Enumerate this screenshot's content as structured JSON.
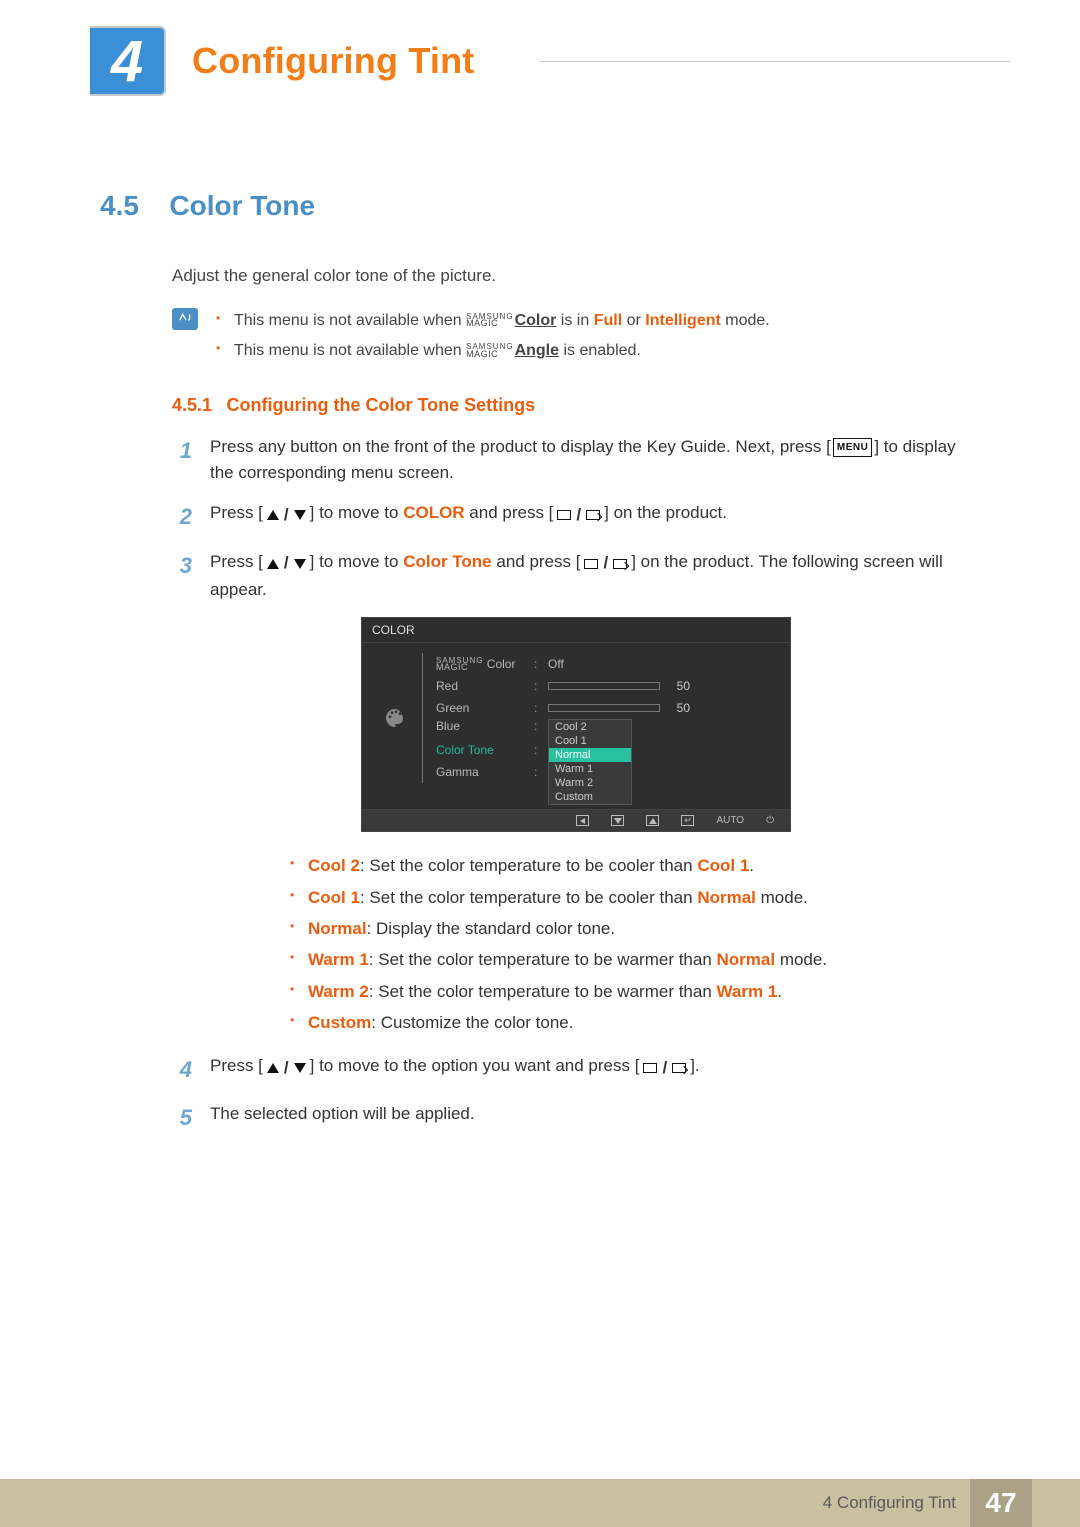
{
  "header": {
    "chapter_number": "4",
    "chapter_title": "Configuring Tint"
  },
  "section": {
    "number": "4.5",
    "title": "Color Tone",
    "description": "Adjust the general color tone of the picture."
  },
  "notes": {
    "line1_prefix": "This menu is not available when ",
    "line1_magic_top": "SAMSUNG",
    "line1_magic_bottom": "MAGIC",
    "line1_magic_word": "Color",
    "line1_middle": " is in ",
    "line1_full": "Full",
    "line1_or": " or ",
    "line1_intelligent": "Intelligent",
    "line1_suffix": " mode.",
    "line2_prefix": "This menu is not available when ",
    "line2_magic_word": "Angle",
    "line2_suffix": " is enabled."
  },
  "subsection": {
    "number": "4.5.1",
    "title": "Configuring the Color Tone Settings"
  },
  "steps": {
    "s1": {
      "num": "1",
      "t1": "Press any button on the front of the product to display the Key Guide. Next, press [",
      "menu": "MENU",
      "t2": "] to display the corresponding menu screen."
    },
    "s2": {
      "num": "2",
      "t1": "Press [",
      "t2": "] to move to ",
      "color": "COLOR",
      "t3": " and press [",
      "t4": "] on the product."
    },
    "s3": {
      "num": "3",
      "t1": "Press [",
      "t2": "] to move to ",
      "ct": "Color Tone",
      "t3": " and press [",
      "t4": "] on the product. The following screen will appear."
    },
    "s4": {
      "num": "4",
      "t1": "Press [",
      "t2": "] to move to the option you want and press [",
      "t3": "]."
    },
    "s5": {
      "num": "5",
      "t1": "The selected option will be applied."
    }
  },
  "osd": {
    "title": "COLOR",
    "magic_top": "SAMSUNG",
    "magic_bottom": "MAGIC",
    "rows": {
      "magic": {
        "label": " Color",
        "value": "Off"
      },
      "red": {
        "label": "Red",
        "value": 50,
        "pct": 50
      },
      "green": {
        "label": "Green",
        "value": 50,
        "pct": 50
      },
      "blue": {
        "label": "Blue"
      },
      "tone": {
        "label": "Color Tone"
      },
      "gamma": {
        "label": "Gamma"
      }
    },
    "options": [
      "Cool 2",
      "Cool 1",
      "Normal",
      "Warm 1",
      "Warm 2",
      "Custom"
    ],
    "selected_index": 2,
    "footer_auto": "AUTO",
    "colors": {
      "bg": "#2e2e2e",
      "highlight": "#28c2a0",
      "active_label": "#1fb89a",
      "text": "#b8b8b8",
      "slider_fill": "#6c6c6c"
    }
  },
  "bullets": {
    "b1": {
      "label": "Cool 2",
      "text": ": Set the color temperature to be cooler than ",
      "ref": "Cool 1",
      "suffix": "."
    },
    "b2": {
      "label": "Cool 1",
      "text": ": Set the color temperature to be cooler than ",
      "ref": "Normal",
      "suffix": " mode."
    },
    "b3": {
      "label": "Normal",
      "text": ": Display the standard color tone.",
      "ref": "",
      "suffix": ""
    },
    "b4": {
      "label": "Warm 1",
      "text": ": Set the color temperature to be warmer than ",
      "ref": "Normal",
      "suffix": " mode."
    },
    "b5": {
      "label": "Warm 2",
      "text": ": Set the color temperature to be warmer than ",
      "ref": "Warm 1",
      "suffix": "."
    },
    "b6": {
      "label": "Custom",
      "text": ": Customize the color tone.",
      "ref": "",
      "suffix": ""
    }
  },
  "footer": {
    "text": "4 Configuring Tint",
    "page": "47"
  },
  "palette": {
    "brand_blue": "#3a8fd5",
    "link_blue": "#4a8fc5",
    "orange": "#f07f1a",
    "red_orange": "#e95d0f",
    "footer_bg": "#c9c0a0",
    "footer_box": "#aaa187"
  }
}
